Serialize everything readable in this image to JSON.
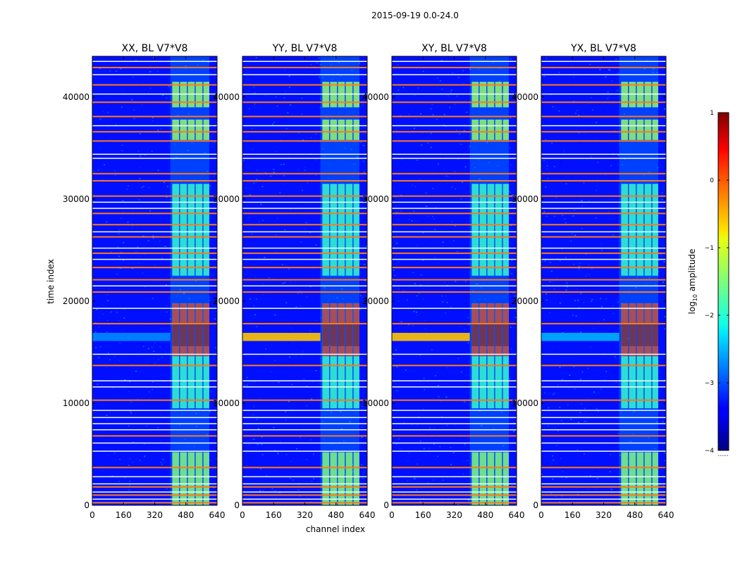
{
  "title": "2015-09-19 0.0-24.0",
  "chart_data": {
    "type": "heatmap",
    "xlabel": "channel index",
    "ylabel": "time index",
    "xlim": [
      0,
      640
    ],
    "ylim": [
      0,
      44000
    ],
    "xticks": [
      0,
      160,
      320,
      480,
      640
    ],
    "yticks": [
      0,
      10000,
      20000,
      30000,
      40000
    ],
    "colormap": "jet",
    "colorbar": {
      "label": "log10 amplitude",
      "label_main": "log",
      "label_sub": "10",
      "label_rest": " amplitude",
      "range": [
        -4,
        1
      ],
      "ticks": [
        1,
        0,
        -1,
        -2,
        -3,
        -4
      ],
      "tick_labels": [
        "1",
        "0",
        "−1",
        "−2",
        "−3",
        "−4"
      ],
      "extra_label": "......"
    },
    "panels": [
      {
        "title": "XX, BL V7*V8",
        "band_center_channel": 0,
        "band_center_time": 16500,
        "band_level": -2.7
      },
      {
        "title": "YY, BL V7*V8",
        "band_center_channel": 0,
        "band_center_time": 16500,
        "band_level": -0.6
      },
      {
        "title": "XY, BL V7*V8",
        "band_center_channel": 0,
        "band_center_time": 16500,
        "band_level": -0.6
      },
      {
        "title": "YX, BL V7*V8",
        "band_center_channel": 0,
        "band_center_time": 16500,
        "band_level": -2.5
      }
    ],
    "background_level": -3.3,
    "rfi_channel_range": [
      400,
      600
    ],
    "rfi_subbands": [
      [
        410,
        445
      ],
      [
        450,
        485
      ],
      [
        490,
        525
      ],
      [
        530,
        565
      ],
      [
        570,
        600
      ]
    ],
    "rfi_time_blocks": [
      {
        "t0": 0,
        "t1": 5200,
        "level": -1.3
      },
      {
        "t0": 9500,
        "t1": 19800,
        "level": -1.8
      },
      {
        "t0": 14600,
        "t1": 19800,
        "level": 0.2
      },
      {
        "t0": 15600,
        "t1": 17800,
        "level": 0.8
      },
      {
        "t0": 22500,
        "t1": 31500,
        "level": -1.8
      },
      {
        "t0": 35800,
        "t1": 37800,
        "level": -1.2
      },
      {
        "t0": 39000,
        "t1": 41500,
        "level": -1.2
      }
    ],
    "flag_lines": {
      "orange_times": [
        250,
        1000,
        1800,
        3700,
        6800,
        10300,
        13700,
        17800,
        20900,
        22100,
        23300,
        24700,
        26300,
        27500,
        28600,
        30300,
        31800,
        32500,
        35700,
        36600,
        38100,
        39500,
        41200,
        42900
      ],
      "white_times": [
        600,
        1300,
        2100,
        2800,
        5300,
        6100,
        7400,
        8000,
        8600,
        9300,
        11600,
        12200,
        14800,
        19300,
        21500,
        24100,
        25200,
        26800,
        29100,
        29700,
        34000,
        34400,
        37200,
        40300,
        42200,
        43500
      ]
    }
  }
}
